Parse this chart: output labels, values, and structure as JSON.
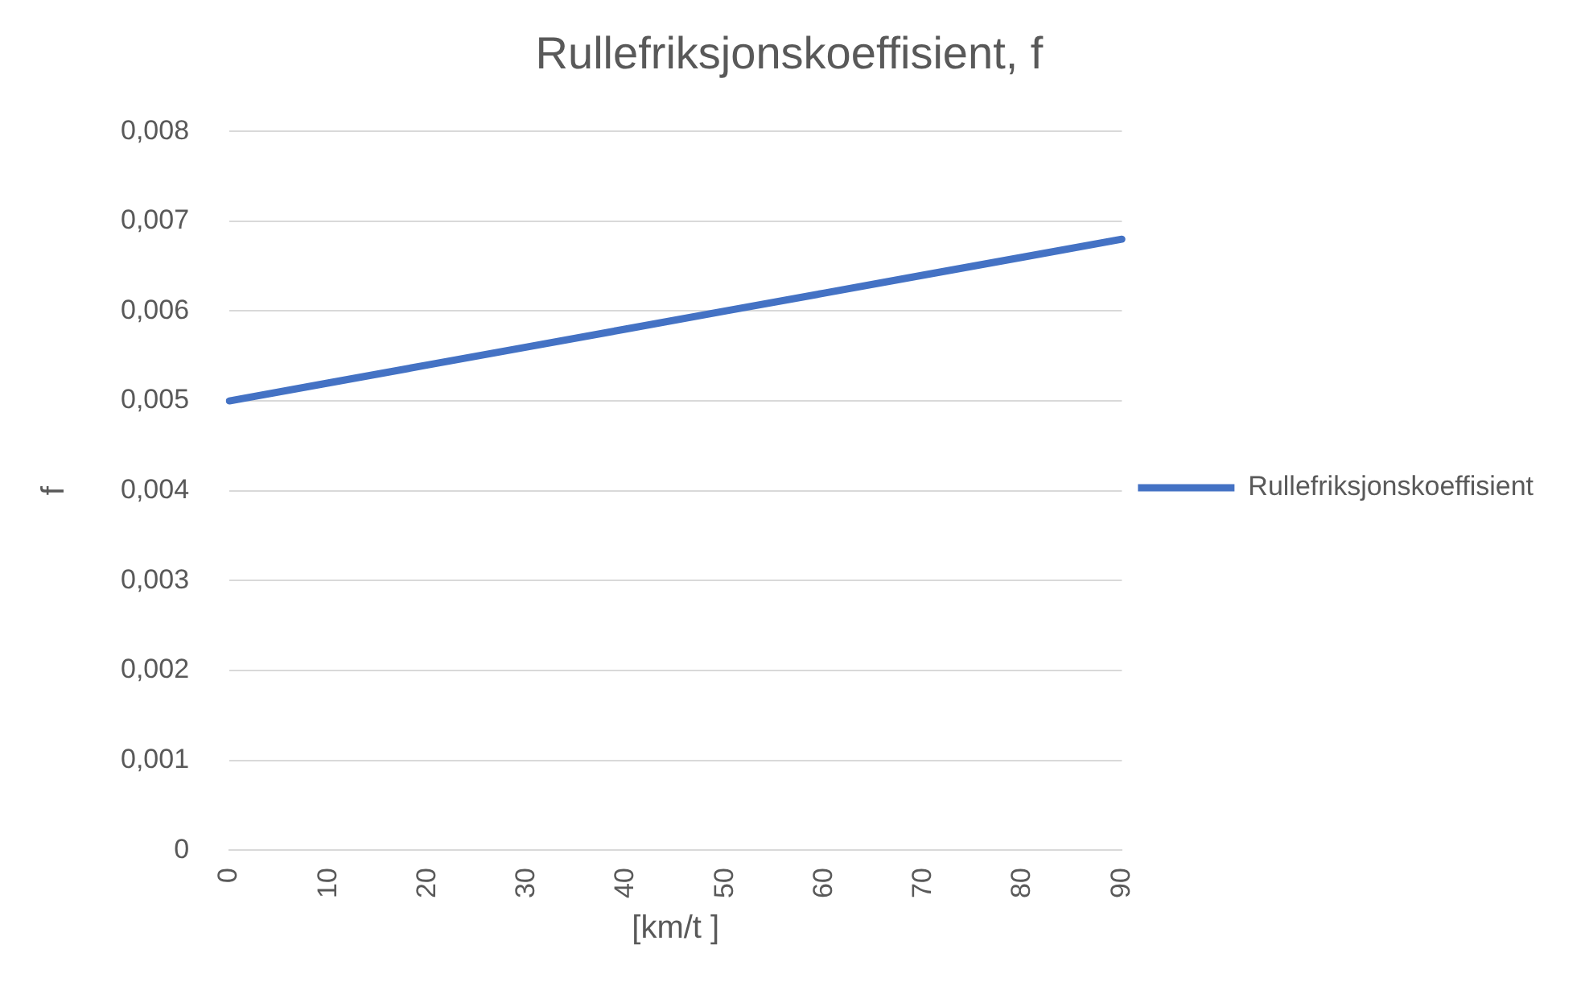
{
  "chart_data": {
    "type": "line",
    "title": "Rullefriksjonskoeffisient, f",
    "xlabel": "[km/t ]",
    "ylabel": "f",
    "categories": [
      "0",
      "10",
      "20",
      "30",
      "40",
      "50",
      "60",
      "70",
      "80",
      "90"
    ],
    "series": [
      {
        "name": "Rullefriksjonskoeffisient",
        "color": "#4472c4",
        "values": [
          0.005,
          0.0052,
          0.0054,
          0.0056,
          0.0058,
          0.006,
          0.0062,
          0.0064,
          0.0066,
          0.0068
        ]
      }
    ],
    "ylim": [
      0,
      0.008
    ],
    "yticks": [
      0,
      {
        "value": 0.001,
        "label": "0,001"
      },
      {
        "value": 0.002,
        "label": "0,002"
      },
      {
        "value": 0.003,
        "label": "0,003"
      },
      {
        "value": 0.004,
        "label": "0,004"
      },
      {
        "value": 0.005,
        "label": "0,005"
      },
      {
        "value": 0.006,
        "label": "0,006"
      },
      {
        "value": 0.007,
        "label": "0,007"
      },
      {
        "value": 0.008,
        "label": "0,008"
      }
    ],
    "grid": "y",
    "legend": "right",
    "marker": "none",
    "line_style": "solid"
  }
}
